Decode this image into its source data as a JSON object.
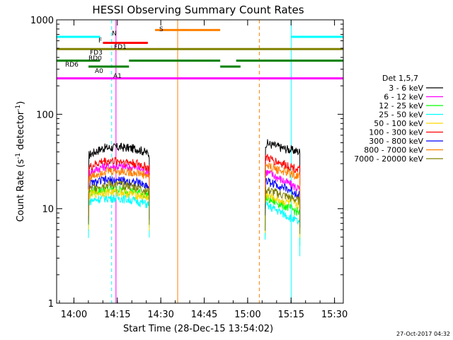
{
  "chart_data": {
    "type": "line",
    "title": "HESSI Observing Summary Count Rates",
    "xlabel": "Start Time (28-Dec-15 13:54:02)",
    "ylabel_main": "Count Rate (s",
    "ylabel_sup1": "-1",
    "ylabel_mid": " detector",
    "ylabel_sup2": "-1",
    "ylabel_end": ")",
    "yscale": "log",
    "ylim": [
      1,
      1000
    ],
    "xlim_minutes": [
      0,
      99
    ],
    "x_tick_labels": [
      "14:00",
      "14:15",
      "14:30",
      "14:45",
      "15:00",
      "15:15",
      "15:30"
    ],
    "x_tick_minutes": [
      5.97,
      20.97,
      35.97,
      50.97,
      65.97,
      80.97,
      95.97
    ],
    "y_tick_labels": [
      "1",
      "10",
      "100",
      "1000"
    ],
    "y_tick_values": [
      1,
      10,
      100,
      1000
    ],
    "legend_title": "Det 1,5,7",
    "legend_position": "right",
    "series": [
      {
        "name": "3 - 6 keV",
        "color": "#000000",
        "seg1": [
          37,
          44,
          45,
          43,
          38
        ],
        "seg2": [
          50,
          44,
          40
        ]
      },
      {
        "name": "6 - 12 keV",
        "color": "#ff00ff",
        "seg1": [
          24,
          28,
          28,
          27,
          24
        ],
        "seg2": [
          25,
          20,
          16
        ]
      },
      {
        "name": "12 - 25 keV",
        "color": "#00ff00",
        "seg1": [
          15,
          16,
          16,
          15,
          14
        ],
        "seg2": [
          13,
          11,
          9
        ]
      },
      {
        "name": "25 - 50 keV",
        "color": "#00ffff",
        "seg1": [
          12,
          13,
          13,
          12,
          11
        ],
        "seg2": [
          11,
          9,
          7
        ]
      },
      {
        "name": "50 - 100 keV",
        "color": "#ffd700",
        "seg1": [
          14,
          15,
          15,
          14,
          13
        ],
        "seg2": [
          14,
          12,
          11
        ]
      },
      {
        "name": "100 - 300 keV",
        "color": "#ff0000",
        "seg1": [
          27,
          32,
          32,
          30,
          27
        ],
        "seg2": [
          35,
          30,
          26
        ]
      },
      {
        "name": "300 - 800 keV",
        "color": "#0000ff",
        "seg1": [
          18,
          20,
          20,
          19,
          17
        ],
        "seg2": [
          20,
          17,
          14
        ]
      },
      {
        "name": "800 - 7000 keV",
        "color": "#ff8000",
        "seg1": [
          21,
          25,
          25,
          24,
          22
        ],
        "seg2": [
          29,
          25,
          22
        ]
      },
      {
        "name": "7000 - 20000 keV",
        "color": "#808000",
        "seg1": [
          16,
          18,
          18,
          17,
          15
        ],
        "seg2": [
          16,
          14,
          12
        ]
      }
    ],
    "seg1_minutes": [
      11,
      16,
      22,
      28,
      32
    ],
    "seg2_minutes": [
      72,
      78,
      84
    ],
    "flag_bars": [
      {
        "label": "N",
        "color": "#00ffff",
        "y": 660,
        "spans": [
          [
            0,
            15
          ],
          [
            81,
            99
          ]
        ]
      },
      {
        "label": "S",
        "color": "#ff8000",
        "y": 780,
        "spans": [
          [
            34,
            56.5
          ]
        ]
      },
      {
        "label": "FD1",
        "color": "#ff0000",
        "y": 570,
        "spans": [
          [
            16,
            31.5
          ]
        ]
      },
      {
        "label": "FD3",
        "color": "#808000",
        "y": 490,
        "spans": [
          [
            0,
            99
          ]
        ]
      },
      {
        "label": "RD0",
        "color": "#008000",
        "y": 370,
        "spans": [
          [
            0,
            15
          ],
          [
            25,
            56.5
          ],
          [
            62,
            99
          ]
        ]
      },
      {
        "label": "RD6",
        "color": "#008000",
        "y": 320,
        "spans": [
          [
            11,
            25
          ],
          [
            56.5,
            63.5
          ]
        ]
      },
      {
        "label": "A0",
        "color": "#ff00ff",
        "y": 240,
        "spans": [
          [
            0,
            99
          ]
        ]
      }
    ],
    "flag_labels": [
      {
        "text": "N",
        "color": "#00ffff"
      },
      {
        "text": "S",
        "color": "#ff8000"
      },
      {
        "text": "F",
        "color": "#ff0000"
      },
      {
        "text": "FD1",
        "color": "#ff0000"
      },
      {
        "text": "FD3",
        "color": "#808000"
      },
      {
        "text": "RD0",
        "color": "#008000"
      },
      {
        "text": "RD6",
        "color": "#008000"
      },
      {
        "text": "A0",
        "color": "#ff00ff"
      },
      {
        "text": "A1",
        "color": "#ff00ff"
      }
    ],
    "vertical_markers": [
      {
        "minute": 0,
        "color": "#00ffff",
        "style": "solid"
      },
      {
        "minute": 19,
        "color": "#00ffff",
        "style": "dashed"
      },
      {
        "minute": 20.5,
        "color": "#ff00ff",
        "style": "solid"
      },
      {
        "minute": 41.8,
        "color": "#ff8000",
        "style": "solid"
      },
      {
        "minute": 70,
        "color": "#ff8000",
        "style": "dashed"
      },
      {
        "minute": 81,
        "color": "#00ffff",
        "style": "solid"
      },
      {
        "minute": 99,
        "color": "#00ffff",
        "style": "dashed"
      }
    ]
  },
  "timestamp": "27-Oct-2017 04:32"
}
